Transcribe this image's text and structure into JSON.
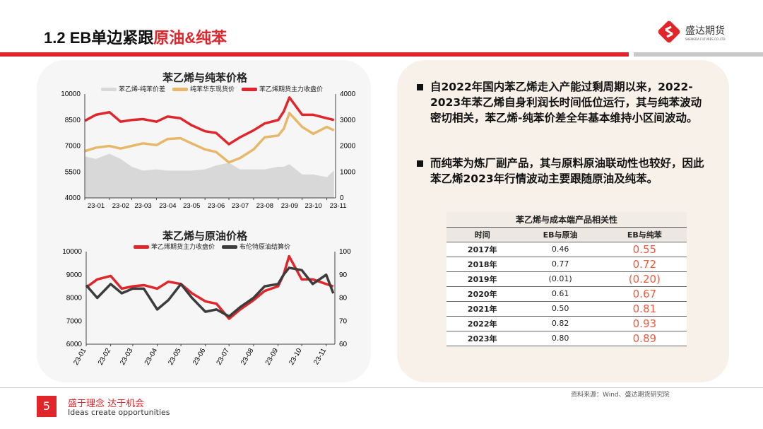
{
  "header": {
    "title_prefix": "1.2 EB单边紧跟",
    "title_highlight": "原油&纯苯",
    "logo_name": "盛达期货",
    "logo_sub": "SHENGDA FUTURES CO.,LTD."
  },
  "colors": {
    "brand_red": "#e0262b",
    "eb": "#e0262b",
    "benzene": "#e8b86a",
    "spread": "#d8d8d8",
    "brent": "#3c3c3c",
    "corr_highlight": "#ef5a3c"
  },
  "chart_data": [
    {
      "type": "line",
      "title": "苯乙烯与纯苯价格",
      "x": [
        "2023-01-01",
        "2023-01-15",
        "2023-02-01",
        "2023-02-15",
        "2023-03-01",
        "2023-03-15",
        "2023-04-01",
        "2023-04-15",
        "2023-05-01",
        "2023-05-15",
        "2023-06-01",
        "2023-06-15",
        "2023-07-01",
        "2023-07-15",
        "2023-08-01",
        "2023-08-15",
        "2023-09-01",
        "2023-09-08",
        "2023-09-15",
        "2023-10-01",
        "2023-10-15",
        "2023-11-01",
        "2023-11-10"
      ],
      "xticks": [
        "23-01",
        "23-02",
        "23-03",
        "23-04",
        "23-05",
        "23-06",
        "23-07",
        "23-08",
        "23-09",
        "23-10",
        "23-11"
      ],
      "yleft": {
        "range": [
          4000,
          10000
        ],
        "ticks": [
          "4000",
          "5500",
          "7000",
          "8500",
          "10000"
        ]
      },
      "yright": {
        "range": [
          0,
          4000
        ],
        "ticks": [
          "0",
          "1000",
          "2000",
          "3000",
          "4000"
        ]
      },
      "series": [
        {
          "name": "苯乙烯-纯苯价差",
          "type": "area",
          "axis": "right",
          "values": [
            1600,
            1500,
            1700,
            1500,
            1200,
            1050,
            1100,
            1050,
            1050,
            1050,
            1100,
            1250,
            1350,
            1100,
            1100,
            1100,
            1200,
            1200,
            1300,
            900,
            900,
            800,
            1050
          ]
        },
        {
          "name": "纯苯华东现货价",
          "type": "line",
          "axis": "left",
          "values": [
            6700,
            6900,
            7000,
            6850,
            7000,
            7150,
            7050,
            7400,
            7450,
            7150,
            6800,
            6650,
            6050,
            6300,
            6800,
            7500,
            7600,
            8000,
            8900,
            8100,
            7700,
            8100,
            7900
          ]
        },
        {
          "name": "苯乙烯期货主力收盘价",
          "type": "line",
          "axis": "left",
          "values": [
            8450,
            8800,
            8950,
            8400,
            8500,
            8550,
            8400,
            8700,
            8600,
            8200,
            7850,
            7750,
            7100,
            7500,
            7900,
            8300,
            8500,
            9000,
            9800,
            8800,
            8800,
            8600,
            8500
          ]
        }
      ]
    },
    {
      "type": "line",
      "title": "苯乙烯与原油价格",
      "x": [
        "2023-01-01",
        "2023-01-15",
        "2023-02-01",
        "2023-02-15",
        "2023-03-01",
        "2023-03-15",
        "2023-04-01",
        "2023-04-15",
        "2023-05-01",
        "2023-05-15",
        "2023-06-01",
        "2023-06-15",
        "2023-07-01",
        "2023-07-15",
        "2023-08-01",
        "2023-08-15",
        "2023-09-01",
        "2023-09-08",
        "2023-09-15",
        "2023-10-01",
        "2023-10-15",
        "2023-11-01",
        "2023-11-10"
      ],
      "xticks": [
        "23-01",
        "23-02",
        "23-03",
        "23-04",
        "23-05",
        "23-06",
        "23-07",
        "23-08",
        "23-09",
        "23-10",
        "23-11"
      ],
      "yleft": {
        "range": [
          6000,
          10000
        ],
        "ticks": [
          "6000",
          "7000",
          "8000",
          "9000",
          "10000"
        ]
      },
      "yright": {
        "range": [
          60,
          100
        ],
        "ticks": [
          "60",
          "70",
          "80",
          "90",
          "100"
        ]
      },
      "series": [
        {
          "name": "苯乙烯期货主力收盘价",
          "type": "line",
          "axis": "left",
          "values": [
            8450,
            8800,
            8950,
            8400,
            8500,
            8550,
            8400,
            8700,
            8600,
            8200,
            7850,
            7750,
            7100,
            7500,
            7900,
            8300,
            8500,
            9000,
            9800,
            8800,
            8800,
            8600,
            8500
          ]
        },
        {
          "name": "布伦特原油结算价",
          "type": "line",
          "axis": "right",
          "values": [
            85.5,
            80,
            86,
            82,
            84,
            84,
            75,
            79,
            86,
            80,
            74,
            75,
            72,
            76,
            80,
            85,
            86,
            90,
            93,
            92,
            86,
            90,
            82
          ]
        }
      ]
    }
  ],
  "bullets": [
    "自2022年国内苯乙烯走入产能过剩周期以来，2022-2023年苯乙烯自身利润长时间低位运行，其与纯苯波动密切相关，苯乙烯-纯苯价差全年基本维持小区间波动。",
    "而纯苯为炼厂副产品，其与原料原油联动性也较好，因此苯乙烯2023年行情波动主要跟随原油及纯苯。"
  ],
  "table": {
    "caption": "苯乙烯与成本端产品相关性",
    "headers": [
      "时间",
      "EB与原油",
      "EB与纯苯"
    ],
    "rows": [
      [
        "2017年",
        "0.46",
        "0.55"
      ],
      [
        "2018年",
        "0.77",
        "0.72"
      ],
      [
        "2019年",
        "(0.01)",
        "(0.20)"
      ],
      [
        "2020年",
        "0.61",
        "0.67"
      ],
      [
        "2021年",
        "0.50",
        "0.81"
      ],
      [
        "2022年",
        "0.82",
        "0.93"
      ],
      [
        "2023年",
        "0.80",
        "0.89"
      ]
    ]
  },
  "footer": {
    "page": "5",
    "slogan": "盛于理念 达于机会",
    "slogan_en": "Ideas create opportunities",
    "source": "资料来源：Wind、盛达期货研究院"
  }
}
